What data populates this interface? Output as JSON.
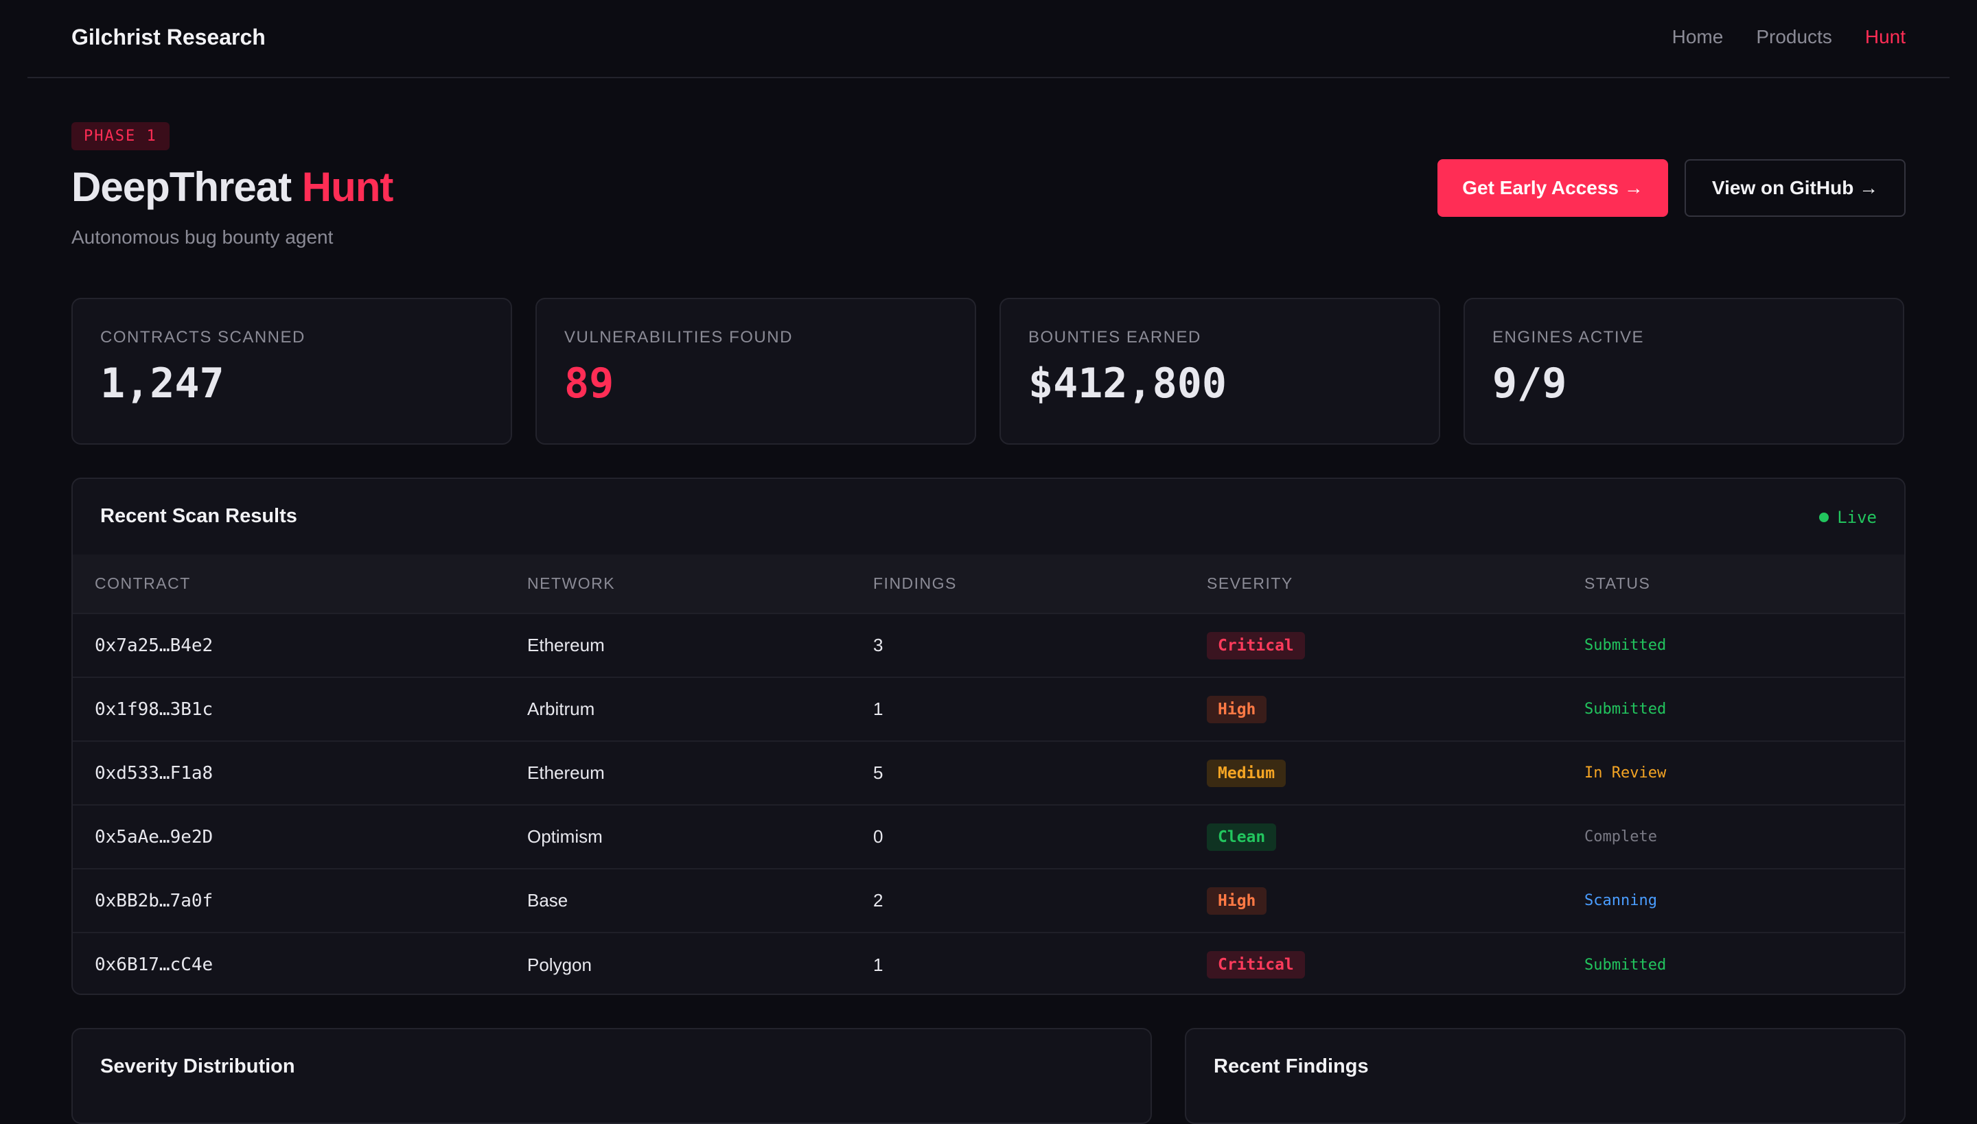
{
  "nav": {
    "brand": "Gilchrist Research",
    "links": [
      {
        "label": "Home",
        "active": false
      },
      {
        "label": "Products",
        "active": false
      },
      {
        "label": "Hunt",
        "active": true
      }
    ]
  },
  "hero": {
    "badge": "PHASE 1",
    "title_main": "DeepThreat ",
    "title_accent": "Hunt",
    "subtitle": "Autonomous bug bounty agent",
    "primary_button": "Get Early Access →",
    "secondary_button": "View on GitHub →"
  },
  "stats": [
    {
      "label": "CONTRACTS SCANNED",
      "value": "1,247"
    },
    {
      "label": "VULNERABILITIES FOUND",
      "value": "89"
    },
    {
      "label": "BOUNTIES EARNED",
      "value": "$412,800"
    },
    {
      "label": "ENGINES ACTIVE",
      "value": "9/9"
    }
  ],
  "scan_results": {
    "title": "Recent Scan Results",
    "live_label": "Live",
    "columns": [
      "CONTRACT",
      "NETWORK",
      "FINDINGS",
      "SEVERITY",
      "STATUS"
    ],
    "rows": [
      {
        "contract": "0x7a25…B4e2",
        "network": "Ethereum",
        "findings": "3",
        "severity": "Critical",
        "status": "Submitted"
      },
      {
        "contract": "0x1f98…3B1c",
        "network": "Arbitrum",
        "findings": "1",
        "severity": "High",
        "status": "Submitted"
      },
      {
        "contract": "0xd533…F1a8",
        "network": "Ethereum",
        "findings": "5",
        "severity": "Medium",
        "status": "In Review"
      },
      {
        "contract": "0x5aAe…9e2D",
        "network": "Optimism",
        "findings": "0",
        "severity": "Clean",
        "status": "Complete"
      },
      {
        "contract": "0xBB2b…7a0f",
        "network": "Base",
        "findings": "2",
        "severity": "High",
        "status": "Scanning"
      },
      {
        "contract": "0x6B17…cC4e",
        "network": "Polygon",
        "findings": "1",
        "severity": "Critical",
        "status": "Submitted"
      }
    ]
  },
  "bottom": {
    "severity_title": "Severity Distribution",
    "findings_title": "Recent Findings"
  },
  "colors": {
    "accent": "#ff2d55",
    "background": "#0c0c12",
    "card": "#12121a",
    "success": "#22c55e",
    "warning": "#f5a524",
    "info": "#4a9dff"
  }
}
